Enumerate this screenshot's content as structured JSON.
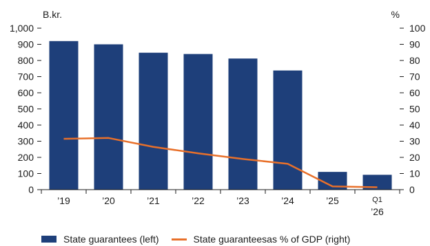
{
  "chart_data": {
    "type": "bar",
    "title": "",
    "left_axis_unit": "B.kr.",
    "right_axis_unit": "%",
    "categories": [
      "’19",
      "’20",
      "’21",
      "’22",
      "’23",
      "’24",
      "’25",
      "Q1\n’26"
    ],
    "ylim_left": [
      0,
      1000
    ],
    "ylim_right": [
      0,
      100
    ],
    "left_ticks": [
      "0",
      "100",
      "200",
      "300",
      "400",
      "500",
      "600",
      "700",
      "800",
      "900",
      "1,000"
    ],
    "right_ticks": [
      "0",
      "10",
      "20",
      "30",
      "40",
      "50",
      "60",
      "70",
      "80",
      "90",
      "100"
    ],
    "series": [
      {
        "name": "State guarantees (left)",
        "type": "bar",
        "axis": "left",
        "values": [
          920,
          900,
          848,
          840,
          812,
          738,
          110,
          92
        ]
      },
      {
        "name": "State guaranteesas % of GDP (right)",
        "type": "line",
        "axis": "right",
        "values": [
          31.5,
          32,
          26.5,
          22.5,
          19,
          16,
          2,
          1.5
        ]
      }
    ],
    "colors": {
      "bar": "#1e3f7a",
      "line": "#e8702a",
      "axis": "#1a1a1a"
    },
    "legend_position": "bottom",
    "grid": false
  }
}
